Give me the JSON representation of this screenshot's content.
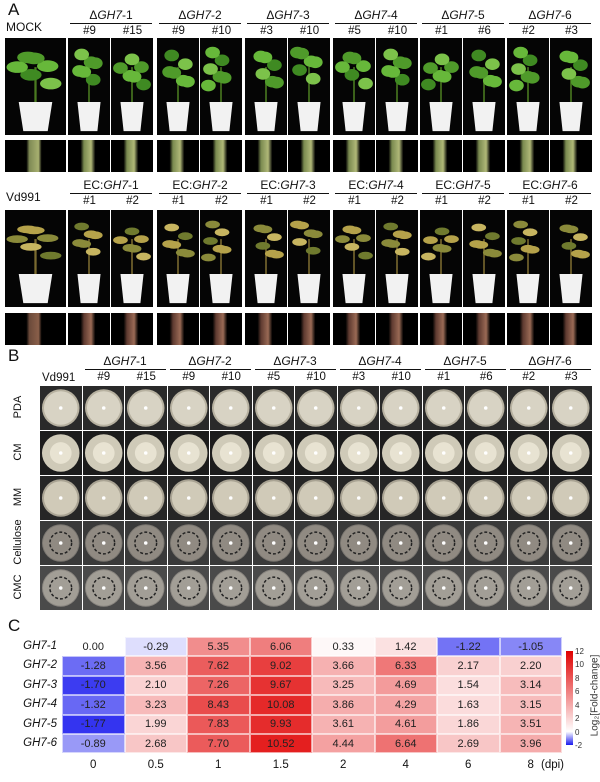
{
  "panelA": {
    "label": "A",
    "row1": {
      "first": "MOCK",
      "groups": [
        {
          "prefix": "Δ",
          "gene": "GH7",
          "suffix": "-1",
          "lines": [
            "#9",
            "#15"
          ]
        },
        {
          "prefix": "Δ",
          "gene": "GH7",
          "suffix": "-2",
          "lines": [
            "#9",
            "#10"
          ]
        },
        {
          "prefix": "Δ",
          "gene": "GH7",
          "suffix": "-3",
          "lines": [
            "#3",
            "#10"
          ]
        },
        {
          "prefix": "Δ",
          "gene": "GH7",
          "suffix": "-4",
          "lines": [
            "#5",
            "#10"
          ]
        },
        {
          "prefix": "Δ",
          "gene": "GH7",
          "suffix": "-5",
          "lines": [
            "#1",
            "#6"
          ]
        },
        {
          "prefix": "Δ",
          "gene": "GH7",
          "suffix": "-6",
          "lines": [
            "#2",
            "#3"
          ]
        }
      ]
    },
    "row2": {
      "first": "Vd991",
      "groups": [
        {
          "prefix": "EC:",
          "gene": "GH7",
          "suffix": "-1",
          "lines": [
            "#1",
            "#2"
          ]
        },
        {
          "prefix": "EC:",
          "gene": "GH7",
          "suffix": "-2",
          "lines": [
            "#1",
            "#2"
          ]
        },
        {
          "prefix": "EC:",
          "gene": "GH7",
          "suffix": "-3",
          "lines": [
            "#1",
            "#2"
          ]
        },
        {
          "prefix": "EC:",
          "gene": "GH7",
          "suffix": "-4",
          "lines": [
            "#1",
            "#2"
          ]
        },
        {
          "prefix": "EC:",
          "gene": "GH7",
          "suffix": "-5",
          "lines": [
            "#1",
            "#2"
          ]
        },
        {
          "prefix": "EC:",
          "gene": "GH7",
          "suffix": "-6",
          "lines": [
            "#1",
            "#2"
          ]
        }
      ]
    }
  },
  "panelB": {
    "label": "B",
    "first": "Vd991",
    "groups": [
      {
        "prefix": "Δ",
        "gene": "GH7",
        "suffix": "-1",
        "lines": [
          "#9",
          "#15"
        ]
      },
      {
        "prefix": "Δ",
        "gene": "GH7",
        "suffix": "-2",
        "lines": [
          "#9",
          "#10"
        ]
      },
      {
        "prefix": "Δ",
        "gene": "GH7",
        "suffix": "-3",
        "lines": [
          "#5",
          "#10"
        ]
      },
      {
        "prefix": "Δ",
        "gene": "GH7",
        "suffix": "-4",
        "lines": [
          "#3",
          "#10"
        ]
      },
      {
        "prefix": "Δ",
        "gene": "GH7",
        "suffix": "-5",
        "lines": [
          "#1",
          "#6"
        ]
      },
      {
        "prefix": "Δ",
        "gene": "GH7",
        "suffix": "-6",
        "lines": [
          "#2",
          "#3"
        ]
      }
    ],
    "media": [
      "PDA",
      "CM",
      "MM",
      "Cellulose",
      "CMC"
    ]
  },
  "panelC": {
    "label": "C"
  },
  "chart_data": {
    "type": "heatmap",
    "rows": [
      "GH7-1",
      "GH7-2",
      "GH7-3",
      "GH7-4",
      "GH7-5",
      "GH7-6"
    ],
    "x": [
      "0",
      "0.5",
      "1",
      "1.5",
      "2",
      "4",
      "6",
      "8"
    ],
    "x_unit": "(dpi)",
    "values": [
      [
        0.0,
        -0.29,
        5.35,
        6.06,
        0.33,
        1.42,
        -1.22,
        -1.05
      ],
      [
        -1.28,
        3.56,
        7.62,
        9.02,
        3.66,
        6.33,
        2.17,
        2.2
      ],
      [
        -1.7,
        2.1,
        7.26,
        9.67,
        3.25,
        4.69,
        1.54,
        3.14
      ],
      [
        -1.32,
        3.23,
        8.43,
        10.08,
        3.86,
        4.29,
        1.63,
        3.15
      ],
      [
        -1.77,
        1.99,
        7.83,
        9.93,
        3.61,
        4.61,
        1.86,
        3.51
      ],
      [
        -0.89,
        2.68,
        7.7,
        10.52,
        4.44,
        6.64,
        2.69,
        3.96
      ]
    ],
    "colorbar": {
      "label": "Log₂[Fold-change]",
      "range": [
        -2,
        12
      ],
      "ticks": [
        "12",
        "10",
        "8",
        "6",
        "4",
        "2",
        "0",
        "-2"
      ],
      "low_color": "#1a1aee",
      "mid_color": "#ffffff",
      "high_color": "#e00000"
    }
  }
}
